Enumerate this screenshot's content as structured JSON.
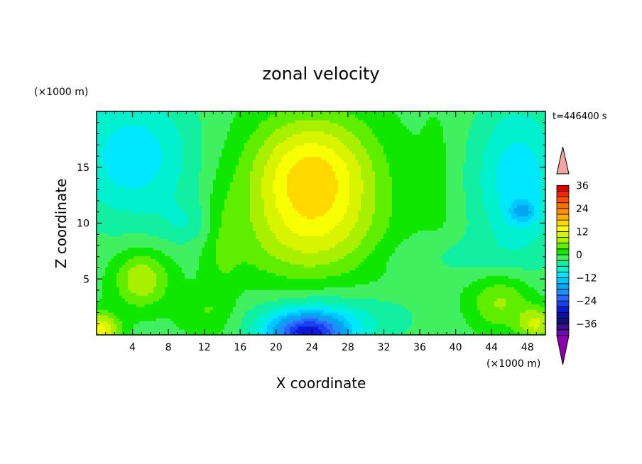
{
  "chart_data": {
    "type": "heatmap",
    "title": "zonal velocity",
    "xlabel": "X coordinate",
    "ylabel": "Z coordinate",
    "x_unit": "(×1000 m)",
    "y_unit": "(×1000 m)",
    "timestamp": "t=446400 s",
    "xlim": [
      0,
      50
    ],
    "ylim": [
      0,
      20
    ],
    "x_ticks": [
      4,
      8,
      12,
      16,
      20,
      24,
      28,
      32,
      36,
      40,
      44,
      48
    ],
    "y_ticks": [
      5,
      10,
      15
    ],
    "colorbar": {
      "levels": [
        -42,
        -39,
        -36,
        -33,
        -30,
        -27,
        -24,
        -21,
        -18,
        -15,
        -12,
        -9,
        -6,
        -3,
        0,
        3,
        6,
        9,
        12,
        15,
        18,
        21,
        24,
        27,
        30,
        33,
        36,
        39,
        42
      ],
      "colors": [
        "#6a0dad",
        "#3d0f8c",
        "#101070",
        "#0a10a8",
        "#0b18d8",
        "#1840f0",
        "#2868ff",
        "#1e90ff",
        "#00a8f0",
        "#00c8ff",
        "#00e8ff",
        "#00f0d0",
        "#10f0a0",
        "#40f060",
        "#10e800",
        "#60ee00",
        "#a8f000",
        "#d8f400",
        "#f8ff00",
        "#ffd800",
        "#ffb000",
        "#ff9000",
        "#ff7000",
        "#ff5000",
        "#f02800",
        "#e00000"
      ],
      "under_color": "#8b00a8",
      "over_color": "#f4a3a3",
      "tick_values": [
        -36,
        -24,
        -12,
        0,
        12,
        24,
        36
      ],
      "tick_labels": [
        "−36",
        "−24",
        "−12",
        "0",
        "12",
        "24",
        "36"
      ]
    },
    "field_base": -1,
    "field_features": [
      {
        "x": 24,
        "z": 14,
        "sx": 7,
        "sz": 5.5,
        "amp": 18
      },
      {
        "x": 24,
        "z": 8,
        "sx": 9,
        "sz": 4,
        "amp": 6
      },
      {
        "x": 23.5,
        "z": 0.2,
        "sx": 4.5,
        "sz": 1.8,
        "amp": -24
      },
      {
        "x": 26,
        "z": 1.5,
        "sx": 9,
        "sz": 2.5,
        "amp": -6
      },
      {
        "x": 5,
        "z": 5,
        "sx": 3,
        "sz": 2.5,
        "amp": 10
      },
      {
        "x": 0.5,
        "z": 0.5,
        "sx": 2,
        "sz": 1.5,
        "amp": 14
      },
      {
        "x": 45,
        "z": 3,
        "sx": 3.5,
        "sz": 2.5,
        "amp": 8
      },
      {
        "x": 49,
        "z": 1,
        "sx": 2,
        "sz": 1.5,
        "amp": 10
      },
      {
        "x": 4,
        "z": 16,
        "sx": 7,
        "sz": 6,
        "amp": -10
      },
      {
        "x": 47,
        "z": 14,
        "sx": 5,
        "sz": 7,
        "amp": -10
      },
      {
        "x": 47.5,
        "z": 11,
        "sx": 1.5,
        "sz": 1,
        "amp": -8
      },
      {
        "x": 38,
        "z": 14,
        "sx": 2,
        "sz": 7,
        "amp": 2
      },
      {
        "x": 14,
        "z": 8,
        "sx": 2,
        "sz": 6,
        "amp": 3
      },
      {
        "x": 10,
        "z": 10,
        "sx": 3,
        "sz": 2,
        "amp": -4
      },
      {
        "x": 38,
        "z": 7,
        "sx": 8,
        "sz": 2,
        "amp": -3
      },
      {
        "x": 12,
        "z": 2,
        "sx": 3,
        "sz": 2,
        "amp": 4
      }
    ]
  }
}
